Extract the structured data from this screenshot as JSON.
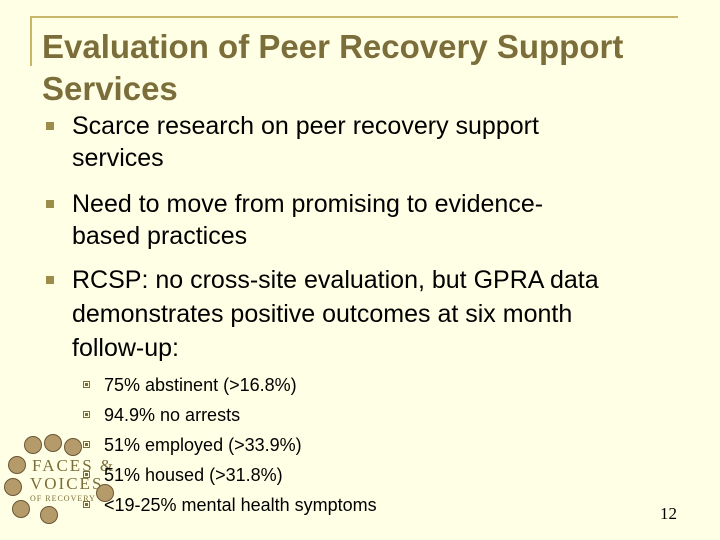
{
  "title": "Evaluation of Peer Recovery Support Services",
  "bullets": [
    {
      "lines": [
        "Scarce research on peer recovery support",
        "services"
      ]
    },
    {
      "lines": [
        "Need to move from promising to evidence-",
        "based practices"
      ]
    },
    {
      "lines": [
        "RCSP: no cross-site evaluation, but GPRA data",
        "demonstrates positive outcomes at six month",
        "follow-up:"
      ]
    }
  ],
  "subbullets": [
    "75% abstinent (>16.8%)",
    "94.9% no arrests",
    "51% employed (>33.9%)",
    "51% housed (>31.8%)",
    "<19-25% mental health symptoms"
  ],
  "slide_number": "12",
  "logo": {
    "line1": "FACES &",
    "line2": "VOICES",
    "line3": "OF RECOVERY"
  },
  "colors": {
    "background": "#ffffe6",
    "title": "#7c6e3a",
    "frame": "#c8b76a",
    "bullet": "#9c8d4a"
  }
}
